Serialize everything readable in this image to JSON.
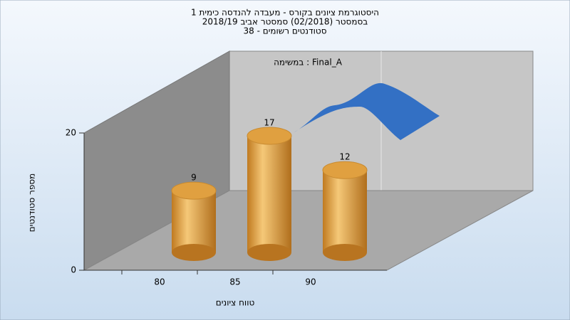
{
  "chart_data": {
    "type": "bar",
    "title": "היסטוגרמת ציונים בקורס - מעבדה להנדסה כימית 1",
    "subtitle": [
      "בסמסטר (02/2018) סמסטר אביב 2018/19",
      "סטודנטים רשומים - 38"
    ],
    "annotation": "במשימה : Final_A",
    "x_label": "טווח ציונים",
    "y_label": "מספר סטודנטים",
    "categories": [
      "80",
      "85",
      "90"
    ],
    "values": [
      9,
      17,
      12
    ],
    "color": "#e0a040",
    "ylim": [
      0,
      20
    ],
    "yticks": [
      0,
      20
    ]
  }
}
